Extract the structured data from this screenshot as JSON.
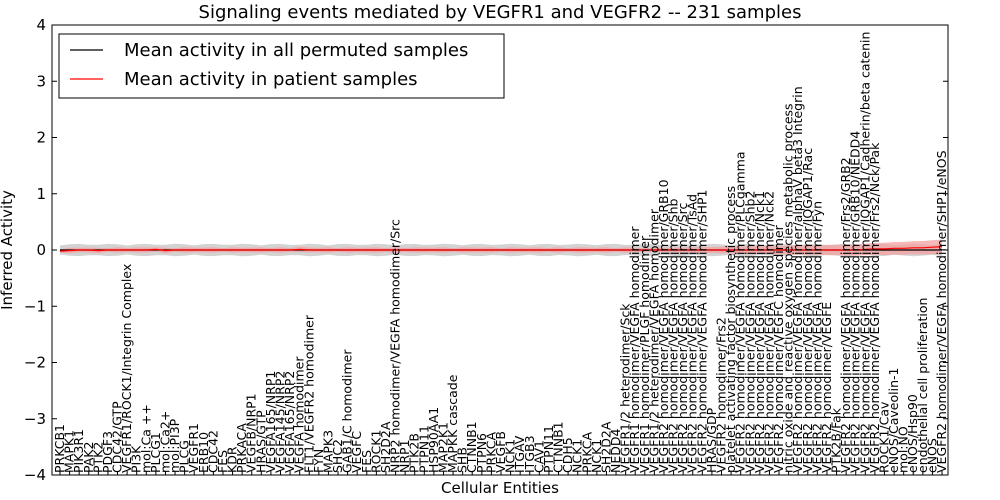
{
  "chart_data": {
    "type": "line",
    "title": "Signaling events mediated by VEGFR1 and VEGFR2 -- 231 samples",
    "xlabel": "Cellular Entities",
    "ylabel": "Inferred Activity",
    "ylim": [
      -4,
      4
    ],
    "yticks": [
      "4",
      "3",
      "2",
      "1",
      "0",
      "−1",
      "−2",
      "−3",
      "−4"
    ],
    "legend": {
      "placement": "top-left",
      "entries": [
        {
          "name": "Mean activity in all permuted samples",
          "color": "#000000"
        },
        {
          "name": "Mean activity in patient samples",
          "color": "#ff0000"
        }
      ]
    },
    "colors": {
      "permuted_line": "#000000",
      "permuted_band": "#c8c8c8",
      "patient_line": "#ff0000",
      "patient_band": "#f4a0a0"
    },
    "categories": [
      "PRKCB1",
      "MAPK1",
      "PIK3R1",
      "PAK2",
      "PTK2",
      "PDGF3",
      "CDC42/GTP",
      "VEGFR1/ROCK1/Integrin Complex",
      "PI3K",
      "mol:Ca ++",
      "PLCG1",
      "mol:Ca2+",
      "mol:PI3P",
      "PLCG",
      "VEGFR1",
      "ERB10",
      "CDC42",
      "FES",
      "KDR",
      "PRKACA",
      "VEGFB/NRP1",
      "HRAS/GTP",
      "VEGFA165/NRP1",
      "VEGFA145/NRP2",
      "VEGFA165/NRP2",
      "VEGFA homodimer",
      "FLT1/VEGFR2 homodimer",
      "FYN",
      "MAPK3",
      "SHC2",
      "GAB1/C homodimer",
      "VEGFC",
      "FES",
      "ROCK1",
      "SH2D2A",
      "NRP2 homodimer/VEGFA homodimer/Src",
      "NRP1",
      "PTK2B",
      "PTPN11",
      "HSP90AA1",
      "MAP2K1",
      "MAPKK cascade",
      "SHB",
      "CTNNB1",
      "PTPN6",
      "PRKCA",
      "VEGFB",
      "NCK1",
      "ITGAV",
      "ITGB3",
      "CAV1",
      "PTPN11",
      "CTNNB1",
      "CDH5",
      "NCK1",
      "PRKCA",
      "NCK1",
      "SH2D2A",
      "NEDD4",
      "VEGFR1/2 heterodimer/Sck",
      "VEGFR1 homodimer/VEGFA homodimer",
      "VEGFR1 homodimer/PLGF homodimer",
      "VEGFR1/2 heterodimer/VEGFA homodimer",
      "VEGFR2 homodimer/VEGFA homodimer/GRB10",
      "VEGFR2 homodimer/VEGFA homodimer/Shb",
      "VEGFR2 homodimer/VEGFA homodimer/Src",
      "VEGFR2 homodimer/VEGFA homodimer/TsAd",
      "VEGFR2 homodimer/VEGFA homodimer/SHP1",
      "HRAS/GDP",
      "VEGFR2 homodimer/Frs2",
      "platelet activating factor biosynthetic process",
      "VEGFR2 homodimer/VEGFA homodimer/PLCgamma",
      "VEGFR2 homodimer/VEGFA homodimer/Shb2",
      "VEGFR2 homodimer/VEGFA homodimer/Nck1",
      "VEGFR2 homodimer/VEGFA homodimer/Nck2",
      "VEGFR2 homodimer/VEGFC homodimer",
      "nitric oxide and reactive oxygen species metabolic process",
      "VEGFR2 homodimer/VEGFA homodimer/alphaV beta3 Integrin",
      "VEGFR2 homodimer/VEGFA homodimer/IQGAP1/Rac",
      "VEGFR2 homodimer/VEGFA homodimer/Fyn",
      "VEGFR2 homodimer/VEGFE",
      "PTK2B/Fak",
      "VEGFR2 homodimer/VEGFA homodimer/Frs2/GRB2",
      "VEGFR2 homodimer/VEGFA homodimer/GRB10/NEDD4",
      "VEGFR2 homodimer/VEGFA homodimer/IQGAP1/Cadherin/beta catenin",
      "VEGFR2 homodimer/VEGFA homodimer/Frs2/Nck/Pak",
      "ROCK1/Cav",
      "eNOS/Caveolin-1",
      "mol:NO",
      "eNOS/Hsp90",
      "endothelial cell proliferation",
      "eNOS",
      "VEGFR2 homodimer/VEGFA homodimer/SHP1/eNOS"
    ],
    "series": [
      {
        "name": "Mean activity in all permuted samples",
        "values": [
          0,
          0,
          0,
          0,
          0,
          0,
          0,
          0,
          0,
          0,
          0,
          0,
          0,
          0,
          0,
          0,
          0,
          0,
          0,
          0,
          0,
          0,
          0,
          0,
          0,
          0,
          0,
          0,
          0,
          0,
          0,
          0,
          0,
          0,
          0,
          0,
          0,
          0,
          0,
          0,
          0,
          0,
          0,
          0,
          0,
          0,
          0,
          0,
          0,
          0,
          0,
          0,
          0,
          0,
          0,
          0,
          0,
          0,
          0,
          0,
          0,
          0,
          0,
          0,
          0,
          0,
          0,
          0,
          0,
          0,
          0,
          0,
          0,
          0,
          0,
          0,
          0,
          0,
          0,
          0,
          0,
          0,
          0,
          0,
          0,
          0,
          0,
          0,
          0,
          0,
          0,
          0,
          0
        ]
      },
      {
        "name": "Mean activity in patient samples",
        "values": [
          -0.02,
          -0.01,
          0,
          0,
          -0.01,
          0,
          0,
          0,
          0,
          0,
          0.01,
          -0.01,
          0,
          0,
          0,
          0,
          0,
          0,
          0,
          0,
          0,
          0,
          0,
          0,
          0,
          0.01,
          0,
          0,
          0,
          0,
          0,
          0,
          0,
          0,
          0,
          0,
          0,
          0,
          0,
          0,
          0,
          0,
          0,
          0,
          0,
          0,
          0,
          0,
          0,
          0,
          0,
          0,
          0,
          0,
          0,
          0,
          0,
          0,
          0,
          0,
          0,
          0,
          0,
          0,
          0,
          0,
          0,
          0,
          0,
          0,
          0,
          0,
          0,
          0,
          0,
          0,
          0,
          0,
          0,
          0,
          0,
          0,
          0,
          0,
          0.01,
          0.02,
          0.02,
          0.03,
          0.03,
          0.04,
          0.04,
          0.05,
          0.06
        ]
      }
    ]
  }
}
